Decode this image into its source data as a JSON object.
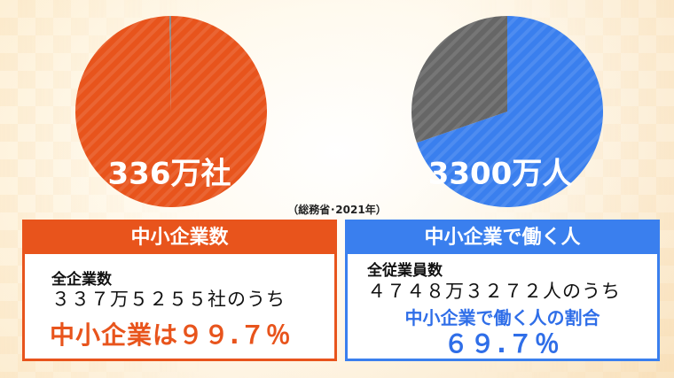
{
  "chart_data": [
    {
      "type": "pie",
      "label": "336万社",
      "slices": [
        {
          "value": 99.7,
          "color": "#e8541c"
        },
        {
          "value": 0.3,
          "color": "#8a8a8a"
        }
      ]
    },
    {
      "type": "pie",
      "label": "3300万人",
      "slices": [
        {
          "value": 69.7,
          "color": "#3a7fee"
        },
        {
          "value": 30.3,
          "color": "#666666"
        }
      ]
    }
  ],
  "source": "（総務省･2021年）",
  "panels": {
    "left": {
      "header": "中小企業数",
      "line1": "全企業数",
      "line2": "３３７万５２５５社のうち",
      "line3": "中小企業は９９.７％"
    },
    "right": {
      "header": "中小企業で働く人",
      "line1": "全従業員数",
      "line2": "４７４８万３２７２人のうち",
      "line3": "中小企業で働く人の割合",
      "line4": "６９.７％"
    }
  },
  "colors": {
    "orange": "#e8541c",
    "blue": "#3a7fee",
    "blue_text": "#2f6ee8"
  }
}
